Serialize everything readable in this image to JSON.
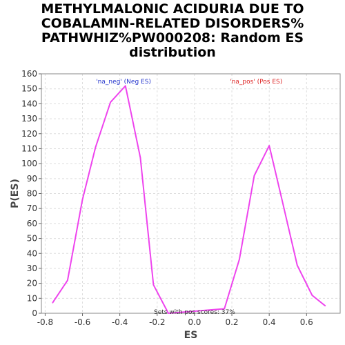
{
  "chart_data": {
    "type": "line",
    "title_lines": [
      "METHYLMALONIC ACIDURIA DUE TO",
      "COBALAMIN-RELATED DISORDERS%",
      "PATHWHIZ%PW000208: Random ES",
      "distribution"
    ],
    "xlabel": "ES",
    "ylabel": "P(ES)",
    "xlim": [
      -0.82,
      0.78
    ],
    "ylim": [
      0,
      160
    ],
    "x_ticks": [
      -0.8,
      -0.6,
      -0.4,
      -0.2,
      0.0,
      0.2,
      0.4,
      0.6
    ],
    "x_tick_labels": [
      "-0.8",
      "-0.6",
      "-0.4",
      "-0.2",
      "0.0",
      "0.2",
      "0.4",
      "0.6"
    ],
    "y_ticks": [
      0,
      10,
      20,
      30,
      40,
      50,
      60,
      70,
      80,
      90,
      100,
      110,
      120,
      130,
      140,
      150,
      160
    ],
    "grid": true,
    "line_color": "#ee44ee",
    "series": [
      {
        "x": [
          -0.76,
          -0.68,
          -0.6,
          -0.53,
          -0.45,
          -0.37,
          -0.29,
          -0.22,
          -0.14,
          0.16,
          0.24,
          0.32,
          0.4,
          0.47,
          0.55,
          0.63,
          0.7
        ],
        "values": [
          7,
          22,
          76,
          111,
          141,
          152,
          104,
          19,
          0,
          3,
          36,
          92,
          112,
          75,
          32,
          12,
          5
        ]
      }
    ],
    "annotations": [
      {
        "text": "'na_neg' (Neg ES)",
        "x": -0.38,
        "y": 155,
        "color": "#2233cc"
      },
      {
        "text": "'na_pos' (Pos ES)",
        "x": 0.33,
        "y": 155,
        "color": "#dd2222"
      },
      {
        "text": "Sets with pos scores: 37%",
        "x": 0.0,
        "y": 1,
        "color": "#333333"
      }
    ]
  }
}
